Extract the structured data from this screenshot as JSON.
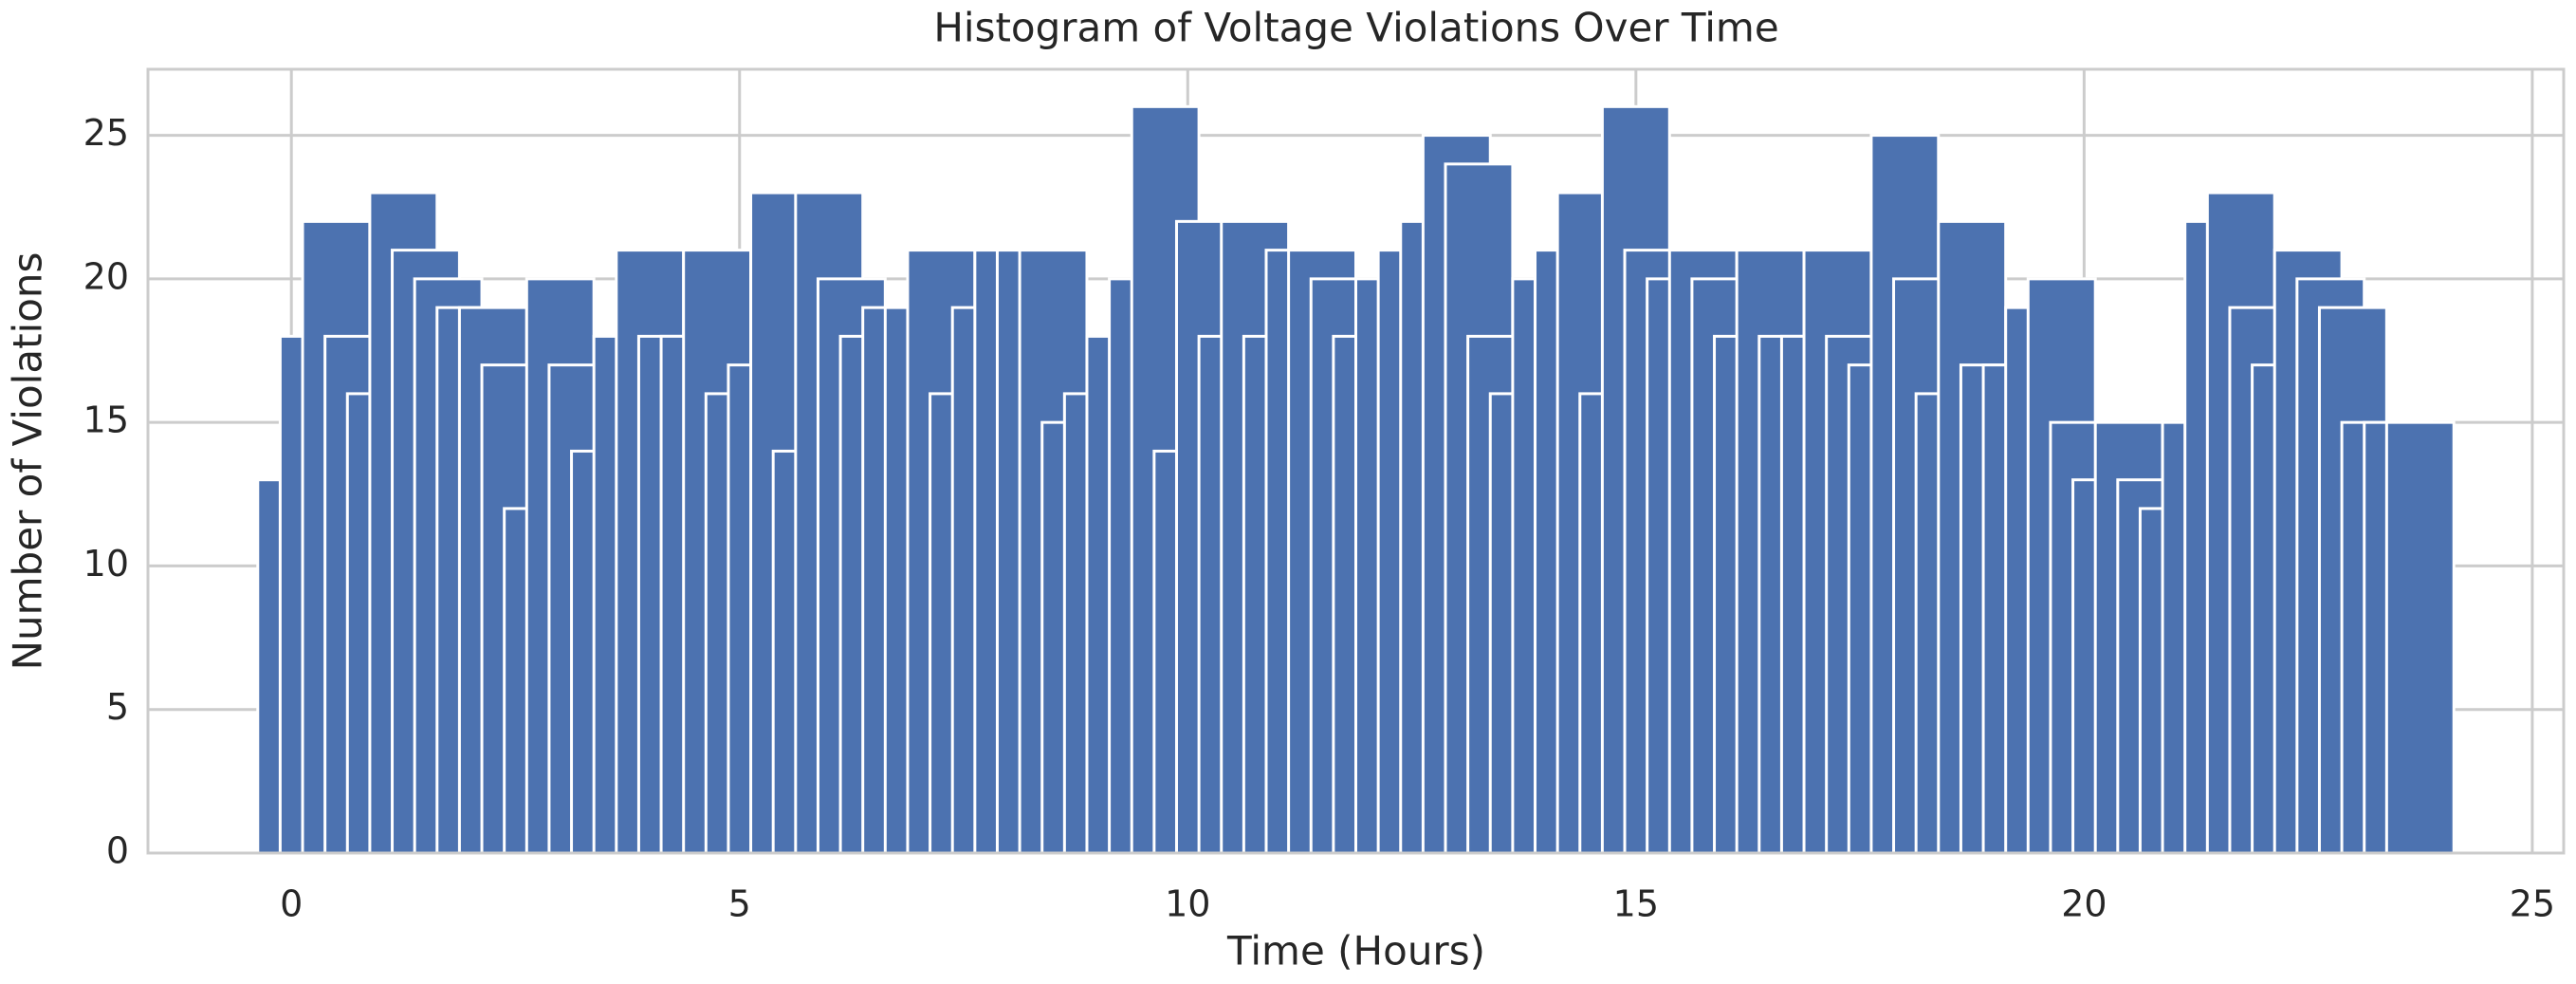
{
  "chart_data": {
    "type": "bar",
    "title": "Histogram of Voltage Violations Over Time",
    "xlabel": "Time (Hours)",
    "ylabel": "Number of Violations",
    "x": [
      0,
      0.25,
      0.5,
      0.75,
      1,
      1.25,
      1.5,
      1.75,
      2,
      2.25,
      2.5,
      2.75,
      3,
      3.25,
      3.5,
      3.75,
      4,
      4.25,
      4.5,
      4.75,
      5,
      5.25,
      5.5,
      5.75,
      6,
      6.25,
      6.5,
      6.75,
      7,
      7.25,
      7.5,
      7.75,
      8,
      8.25,
      8.5,
      8.75,
      9,
      9.25,
      9.5,
      9.75,
      10,
      10.25,
      10.5,
      10.75,
      11,
      11.25,
      11.5,
      11.75,
      12,
      12.25,
      12.5,
      12.75,
      13,
      13.25,
      13.5,
      13.75,
      14,
      14.25,
      14.5,
      14.75,
      15,
      15.25,
      15.5,
      15.75,
      16,
      16.25,
      16.5,
      16.75,
      17,
      17.25,
      17.5,
      17.75,
      18,
      18.25,
      18.5,
      18.75,
      19,
      19.25,
      19.5,
      19.75,
      20,
      20.25,
      20.5,
      20.75,
      21,
      21.25,
      21.5,
      21.75,
      22,
      22.25,
      22.5,
      22.75,
      23,
      23.25,
      23.5,
      23.75
    ],
    "values": [
      13,
      18,
      22,
      18,
      16,
      23,
      21,
      20,
      19,
      19,
      17,
      12,
      20,
      17,
      14,
      18,
      21,
      18,
      18,
      21,
      16,
      17,
      23,
      14,
      23,
      20,
      18,
      19,
      19,
      21,
      16,
      19,
      21,
      21,
      21,
      15,
      16,
      18,
      20,
      26,
      14,
      22,
      18,
      22,
      18,
      21,
      21,
      20,
      18,
      20,
      21,
      22,
      25,
      24,
      18,
      16,
      20,
      21,
      23,
      16,
      26,
      21,
      20,
      21,
      20,
      18,
      21,
      18,
      18,
      21,
      18,
      17,
      25,
      20,
      16,
      22,
      17,
      17,
      19,
      20,
      15,
      13,
      15,
      13,
      12,
      15,
      22,
      23,
      19,
      17,
      21,
      20,
      19,
      15,
      15,
      15
    ],
    "color": "#4c72b0",
    "xlim": [
      -1.6,
      25.35
    ],
    "ylim": [
      0,
      27.3
    ],
    "xticks": [
      0,
      5,
      10,
      15,
      20,
      25
    ],
    "yticks": [
      0,
      5,
      10,
      15,
      20,
      25
    ],
    "grid": true
  }
}
